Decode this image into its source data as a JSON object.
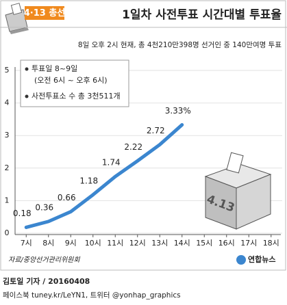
{
  "chart_data": {
    "type": "line",
    "badge": "4·13 총선",
    "title": "1일차 사전투표 시간대별 투표율",
    "subtitle": "8일 오후 2시 현재, 총 4천210만398명 선거인 중 140만여명 투표",
    "annotations": [
      "투표일 8~9일",
      "(오전 6시 ~ 오후 6시)",
      "사전투표소 수 총 3천511개"
    ],
    "categories": [
      "7시",
      "8시",
      "9시",
      "10시",
      "11시",
      "12시",
      "13시",
      "14시",
      "15시",
      "16시",
      "17시",
      "18시"
    ],
    "values": [
      0.18,
      0.36,
      0.66,
      1.18,
      1.74,
      2.22,
      2.72,
      3.33,
      null,
      null,
      null,
      null
    ],
    "value_labels": [
      "0.18",
      "0.36",
      "0.66",
      "1.18",
      "1.74",
      "2.22",
      "2.72",
      "3.33%",
      null,
      null,
      null,
      null
    ],
    "color": "#3b86cf",
    "ylim": [
      0,
      5
    ],
    "yticks": [
      0,
      1,
      2,
      3,
      4,
      5
    ],
    "grid": true,
    "box_label": "4.13",
    "source": "자료/중앙선거관리위원회",
    "logo": "연합뉴스",
    "credit": "김토일 기자 / 20160408",
    "social": "페이스북 tuney.kr/LeYN1, 트위터 @yonhap_graphics"
  }
}
